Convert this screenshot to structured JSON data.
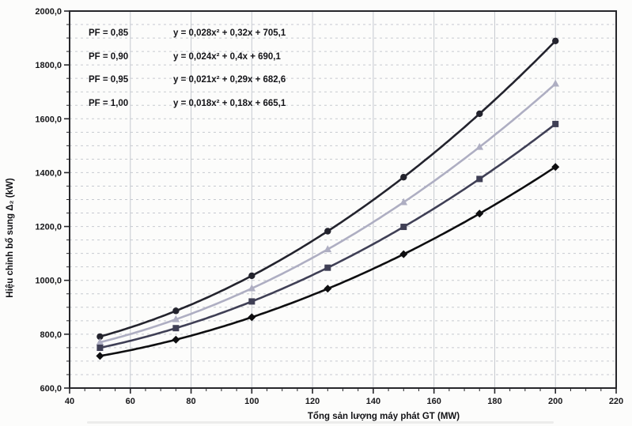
{
  "page": {
    "background": "#fcfcfb"
  },
  "chart_data": {
    "type": "line",
    "title": "",
    "xlabel": "Tổng sản lượng máy phát GT (MW)",
    "ylabel": "Hiệu chỉnh bổ sung Δ₂ (kW)",
    "xlim": [
      40,
      220
    ],
    "ylim": [
      600,
      2000
    ],
    "x_major_step": 20,
    "x_minor_step": 5,
    "y_major_step": 200,
    "y_minor_step": 50,
    "x_tick_labels": [
      "40",
      "60",
      "80",
      "100",
      "120",
      "140",
      "160",
      "180",
      "200",
      "220"
    ],
    "y_tick_labels": [
      "600,0",
      "800,0",
      "1000,0",
      "1200,0",
      "1400,0",
      "1600,0",
      "1800,0",
      "2000,0"
    ],
    "grid": {
      "vertical_style": "solid",
      "horizontal_style": "dashed",
      "color": "#c6c9d0"
    },
    "axis_color": "#26262a",
    "legend_position": "top-left-inside",
    "x": [
      50,
      75,
      100,
      125,
      150,
      175,
      200
    ],
    "series": [
      {
        "name": "PF = 0,85",
        "equation": "y = 0,028x² + 0,32x + 705,1",
        "a": 0.028,
        "b": 0.32,
        "c": 705.1,
        "marker": "circle",
        "color": "#23232d",
        "values": [
          791.1,
          886.6,
          1017.1,
          1182.6,
          1383.1,
          1618.6,
          1889.1
        ]
      },
      {
        "name": "PF = 0,90",
        "equation": "y = 0,024x² + 0,4x + 690,1",
        "a": 0.024,
        "b": 0.4,
        "c": 690.1,
        "marker": "triangle",
        "color": "#aeaec2",
        "values": [
          770.1,
          855.1,
          970.1,
          1115.1,
          1290.1,
          1495.1,
          1730.1
        ]
      },
      {
        "name": "PF = 0,95",
        "equation": "y = 0,021x² + 0,29x + 682,6",
        "a": 0.021,
        "b": 0.29,
        "c": 682.6,
        "marker": "square",
        "color": "#3f3f55",
        "values": [
          749.6,
          822.5,
          921.6,
          1047.0,
          1198.6,
          1376.5,
          1580.6
        ]
      },
      {
        "name": "PF = 1,00",
        "equation": "y = 0,018x² + 0,18x + 665,1",
        "a": 0.018,
        "b": 0.18,
        "c": 665.1,
        "marker": "diamond",
        "color": "#0e0e10",
        "values": [
          719.1,
          779.9,
          863.1,
          968.9,
          1097.1,
          1247.9,
          1421.1
        ]
      }
    ]
  }
}
